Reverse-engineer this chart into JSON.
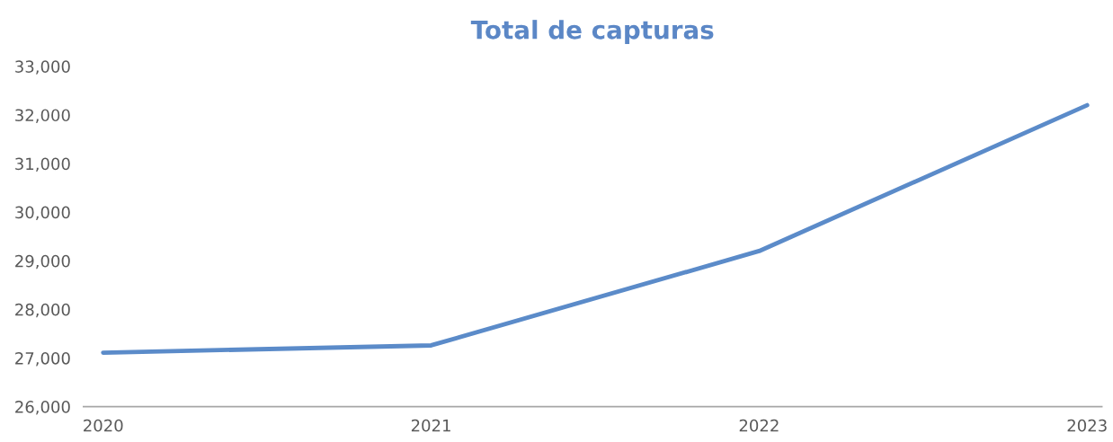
{
  "chart_data": {
    "type": "line",
    "title": "Total de capturas",
    "categories": [
      "2020",
      "2021",
      "2022",
      "2023"
    ],
    "series": [
      {
        "color": "#5b8bc9",
        "values": [
          27110,
          27260,
          29200,
          32200
        ]
      }
    ],
    "ylim": [
      26000,
      33000
    ],
    "yticks": [
      {
        "value": 26000,
        "label": "26,000"
      },
      {
        "value": 27000,
        "label": "27,000"
      },
      {
        "value": 28000,
        "label": "28,000"
      },
      {
        "value": 29000,
        "label": "29,000"
      },
      {
        "value": 30000,
        "label": "30,000"
      },
      {
        "value": 31000,
        "label": "31,000"
      },
      {
        "value": 32000,
        "label": "32,000"
      },
      {
        "value": 33000,
        "label": "33,000"
      }
    ],
    "grid": false,
    "marker": "none",
    "line_style": "solid"
  }
}
